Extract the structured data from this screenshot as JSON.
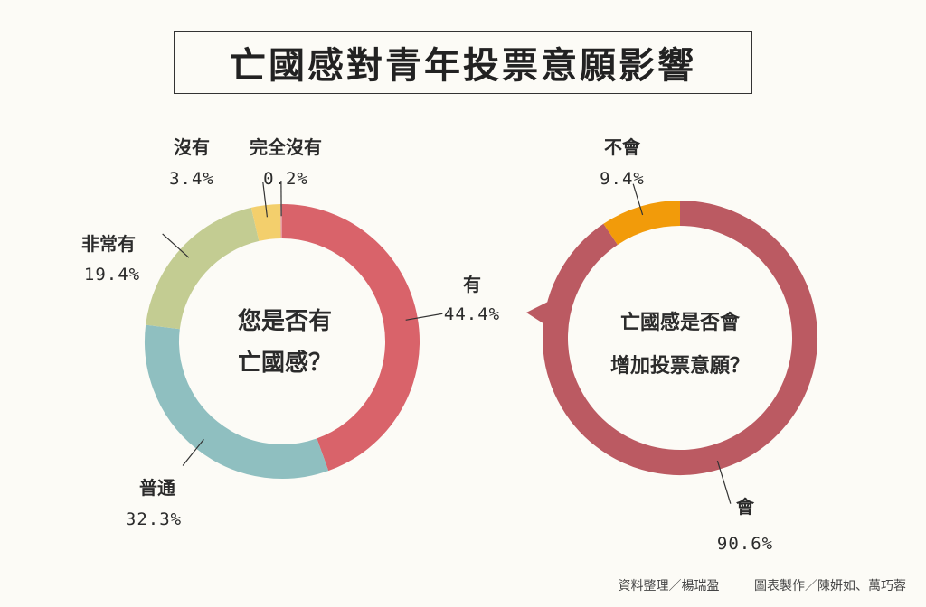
{
  "title": "亡國感對青年投票意願影響",
  "chart_data": [
    {
      "type": "pie",
      "variant": "donut",
      "center_label": [
        "您是否有",
        "亡國感？"
      ],
      "slices": [
        {
          "label": "有",
          "value": 44.4,
          "value_text": "44.4%",
          "color": "#d9636a"
        },
        {
          "label": "普通",
          "value": 32.3,
          "value_text": "32.3%",
          "color": "#8fbfc0"
        },
        {
          "label": "非常有",
          "value": 19.4,
          "value_text": "19.4%",
          "color": "#c3cc92"
        },
        {
          "label": "沒有",
          "value": 3.4,
          "value_text": "3.4%",
          "color": "#f3cf6c"
        },
        {
          "label": "完全沒有",
          "value": 0.2,
          "value_text": "0.2%",
          "color": "#e59aa0"
        }
      ]
    },
    {
      "type": "pie",
      "variant": "donut",
      "center_label": [
        "亡國感是否會",
        "增加投票意願？"
      ],
      "slices": [
        {
          "label": "會",
          "value": 90.6,
          "value_text": "90.6%",
          "color": "#bb5a62"
        },
        {
          "label": "不會",
          "value": 9.4,
          "value_text": "9.4%",
          "color": "#f29b0a"
        }
      ]
    }
  ],
  "credits": {
    "data": "資料整理／楊瑞盈",
    "design": "圖表製作／陳妍如、萬巧蓉"
  }
}
